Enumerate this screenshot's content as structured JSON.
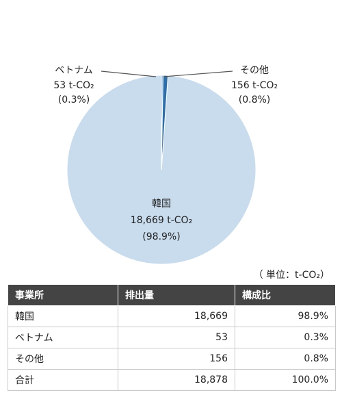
{
  "chart_data": {
    "type": "pie",
    "unit_label": "（ 単位：t-CO₂）",
    "slices": [
      {
        "name": "韓国",
        "value": 18669,
        "value_label": "18,669  t-CO₂",
        "pct_label": "(98.9%)",
        "color": "#c9dcee"
      },
      {
        "name": "ベトナム",
        "value": 53,
        "value_label": "53  t-CO₂",
        "pct_label": "(0.3%)",
        "color": "#7fb2df"
      },
      {
        "name": "その他",
        "value": 156,
        "value_label": "156  t-CO₂",
        "pct_label": "(0.8%)",
        "color": "#2c6faa"
      }
    ]
  },
  "table": {
    "headers": [
      "事業所",
      "排出量",
      "構成比"
    ],
    "rows": [
      [
        "韓国",
        "18,669",
        "98.9%"
      ],
      [
        "ベトナム",
        "53",
        "0.3%"
      ],
      [
        "その他",
        "156",
        "0.8%"
      ],
      [
        "合計",
        "18,878",
        "100.0%"
      ]
    ]
  }
}
